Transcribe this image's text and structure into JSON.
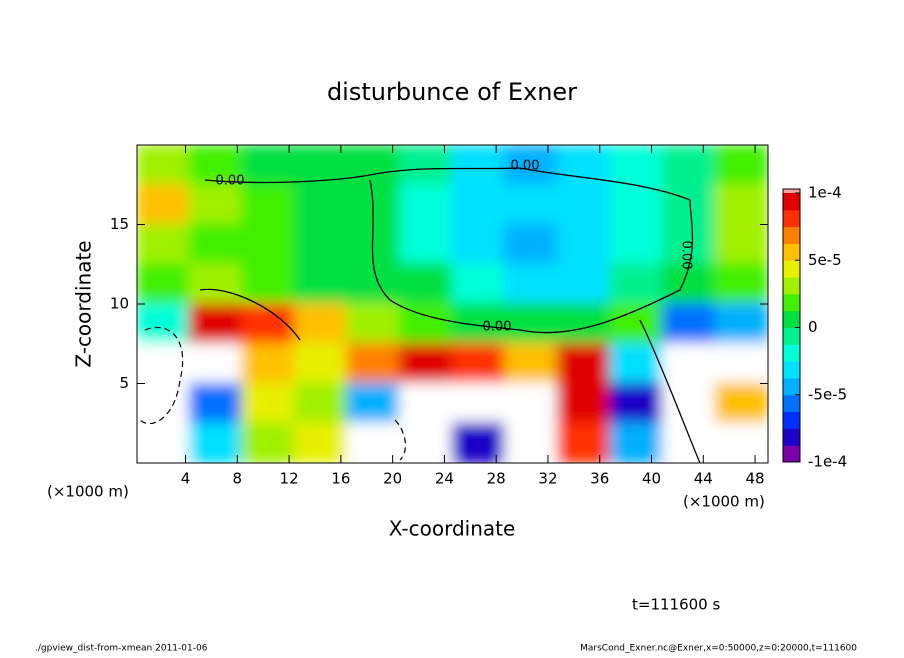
{
  "chart_data": {
    "type": "contour",
    "title": "disturbunce of Exner",
    "xlabel": "X-coordinate",
    "ylabel": "Z-coordinate",
    "x_unit_label": "(×1000 m)",
    "time_label": "t=111600 s",
    "footer_left": "./gpview_dist-from-xmean  2011-01-06",
    "footer_right": "MarsCond_Exner.nc@Exner,x=0:50000,z=0:20000,t=111600",
    "contour_labels": [
      "0.00",
      "0.00",
      "0.00",
      "0.00"
    ],
    "xlim": [
      0.25,
      49
    ],
    "ylim": [
      0,
      20
    ],
    "xticks": [
      4,
      8,
      12,
      16,
      20,
      24,
      28,
      32,
      36,
      40,
      44,
      48
    ],
    "yticks": [
      5,
      10,
      15
    ],
    "clim": [
      -0.0001,
      0.0001
    ],
    "colorbar_ticks": [
      {
        "value": 0.0001,
        "label": "1e-4"
      },
      {
        "value": 5e-05,
        "label": "5e-5"
      },
      0,
      {
        "value": -5e-05,
        "label": "-5e-5"
      },
      {
        "value": -0.0001,
        "label": "-1e-4"
      }
    ],
    "colors": [
      "#7a00a8",
      "#1e00c8",
      "#0030ff",
      "#0070ff",
      "#00b0ff",
      "#00e0ff",
      "#00ffd8",
      "#00f090",
      "#00e040",
      "#40f000",
      "#a0f000",
      "#e8f000",
      "#ffc000",
      "#ff8000",
      "#ff3000",
      "#e00000"
    ],
    "z": [
      [
        3e-05,
        2e-05,
        1e-05,
        1e-05,
        0,
        -1e-05,
        -3e-05,
        -4e-05,
        -3e-05,
        -2e-05,
        -1e-05,
        2e-05
      ],
      [
        5e-05,
        3e-05,
        2e-05,
        1e-05,
        0,
        -2e-05,
        -3e-05,
        -3e-05,
        -3e-05,
        -2e-05,
        -1e-05,
        3e-05
      ],
      [
        3e-05,
        2e-05,
        2e-05,
        1e-05,
        0,
        -2e-05,
        -3e-05,
        -4e-05,
        -3e-05,
        -2e-05,
        -1e-05,
        3e-05
      ],
      [
        2e-05,
        3e-05,
        2e-05,
        1e-05,
        1e-05,
        0,
        -2e-05,
        -3e-05,
        -3e-05,
        -1e-05,
        0,
        2e-05
      ],
      [
        -2e-05,
        9e-05,
        8e-05,
        5e-05,
        3e-05,
        2e-05,
        1e-05,
        1e-05,
        1e-05,
        2e-05,
        -6e-05,
        -5e-05
      ],
      [
        -0.00015,
        0.00012,
        5e-05,
        4e-05,
        7e-05,
        9e-05,
        8e-05,
        6e-05,
        9e-05,
        -3e-05,
        0.00012,
        -0.00012
      ],
      [
        -0.00012,
        -6e-05,
        4e-05,
        3e-05,
        -5e-05,
        0.00015,
        0.00015,
        0.00012,
        9e-05,
        -8e-05,
        0.00012,
        6e-05
      ],
      [
        -0.00012,
        -3e-05,
        3e-05,
        4e-05,
        -0.00012,
        0.00012,
        -8e-05,
        0.00012,
        8e-05,
        -5e-05,
        0.00015,
        0.00015
      ]
    ]
  }
}
